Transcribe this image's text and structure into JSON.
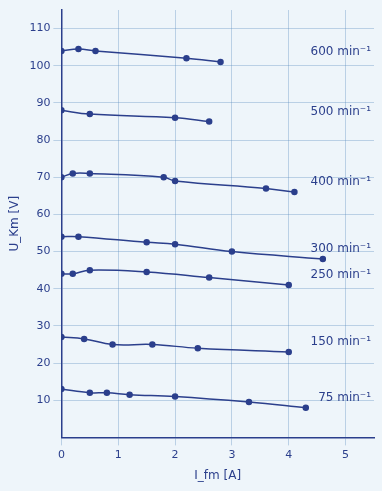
{
  "chart_data": {
    "type": "line",
    "x_label": "I_fm [A]",
    "y_label": "U_Km [V]",
    "xlim": [
      0,
      5.5
    ],
    "xticks": [
      0,
      1,
      2,
      3,
      4,
      5
    ],
    "ylim": [
      0,
      115
    ],
    "yticks": [
      10,
      20,
      30,
      40,
      50,
      60,
      70,
      80,
      90,
      100,
      110
    ],
    "grid": true,
    "marker": "circle",
    "series": [
      {
        "name": "600 min⁻¹",
        "color": "#2b3f8c",
        "x": [
          0,
          0.3,
          0.6,
          2.2,
          2.8
        ],
        "values": [
          104,
          104.5,
          104,
          102,
          101
        ]
      },
      {
        "name": "500 min⁻¹",
        "color": "#2b3f8c",
        "x": [
          0,
          0.5,
          2,
          2.6
        ],
        "values": [
          88,
          87,
          86,
          85
        ]
      },
      {
        "name": "400 min⁻¹",
        "color": "#2b3f8c",
        "x": [
          0,
          0.2,
          0.5,
          1.8,
          2,
          3.6,
          4.1
        ],
        "values": [
          70,
          71,
          71,
          70,
          69,
          67,
          66
        ]
      },
      {
        "name": "300 min⁻¹",
        "color": "#2b3f8c",
        "x": [
          0,
          0.3,
          1.5,
          2,
          3,
          4.6
        ],
        "values": [
          54,
          54,
          52.5,
          52,
          50,
          48
        ]
      },
      {
        "name": "250 min⁻¹",
        "color": "#2b3f8c",
        "x": [
          0,
          0.2,
          0.5,
          1.5,
          2.6,
          4
        ],
        "values": [
          44,
          44,
          45,
          44.5,
          43,
          41
        ]
      },
      {
        "name": "150 min⁻¹",
        "color": "#2b3f8c",
        "x": [
          0,
          0.4,
          0.9,
          1.6,
          2.4,
          4
        ],
        "values": [
          27,
          26.5,
          25,
          25,
          24,
          23
        ]
      },
      {
        "name": "75 min⁻¹",
        "color": "#2b3f8c",
        "x": [
          0,
          0.5,
          0.8,
          1.2,
          2,
          3.3,
          4.3
        ],
        "values": [
          13,
          12,
          12,
          11.5,
          11,
          9.5,
          8
        ]
      }
    ]
  }
}
